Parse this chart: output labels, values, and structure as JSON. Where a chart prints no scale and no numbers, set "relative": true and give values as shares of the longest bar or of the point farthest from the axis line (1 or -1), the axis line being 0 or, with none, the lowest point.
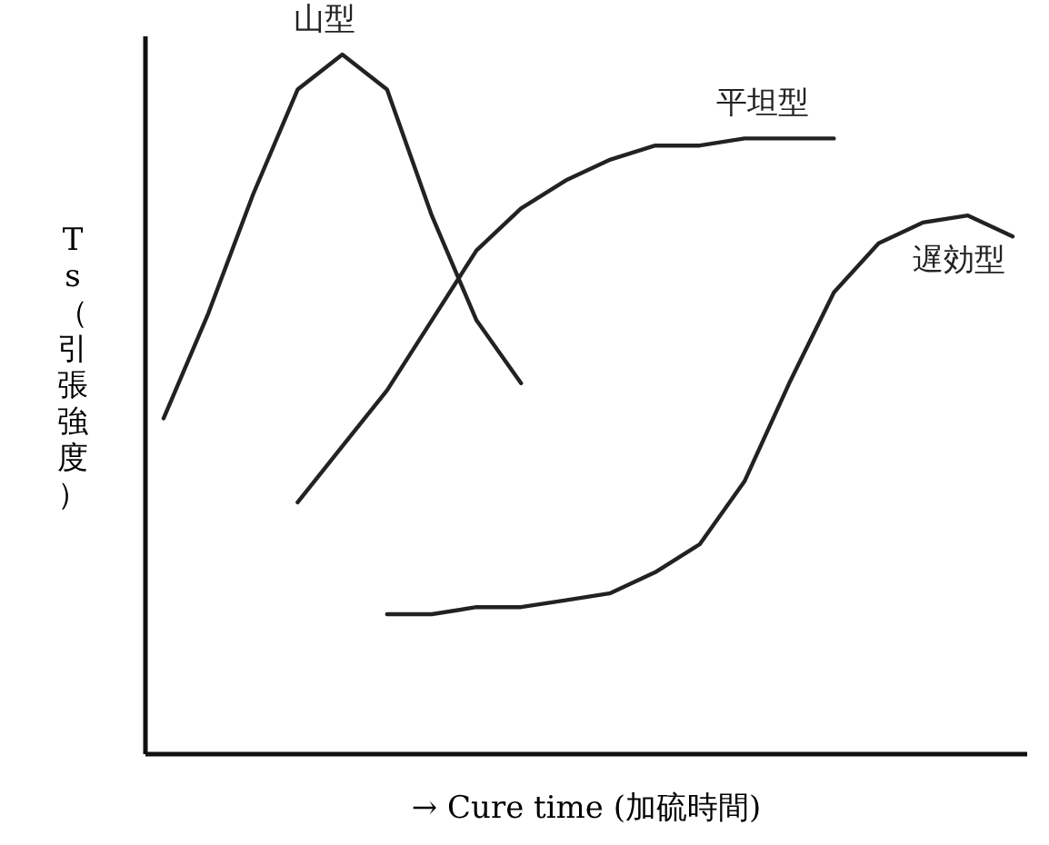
{
  "chart_data": {
    "type": "line",
    "relative": true,
    "tick_labels": false,
    "xlabel": "→ Cure time (加硫時間)",
    "ylabel": "Ts（引張強度）",
    "categories": [
      null,
      null,
      null,
      null,
      null,
      null,
      null,
      null,
      null,
      null,
      null,
      null,
      null,
      null,
      null,
      null,
      null,
      null,
      null,
      null
    ],
    "series": [
      {
        "name": "山型",
        "color": "#222222",
        "values": [
          0.48,
          0.63,
          0.8,
          0.95,
          1.0,
          0.95,
          0.77,
          0.62,
          0.53,
          null,
          null,
          null,
          null,
          null,
          null,
          null,
          null,
          null,
          null,
          null
        ]
      },
      {
        "name": "平坦型",
        "color": "#222222",
        "values": [
          null,
          null,
          null,
          0.36,
          0.44,
          0.52,
          0.62,
          0.72,
          0.78,
          0.82,
          0.85,
          0.87,
          0.87,
          0.88,
          0.88,
          0.88,
          null,
          null,
          null,
          null
        ]
      },
      {
        "name": "遅効型",
        "color": "#222222",
        "values": [
          null,
          null,
          null,
          null,
          null,
          0.2,
          0.2,
          0.21,
          0.21,
          0.22,
          0.23,
          0.26,
          0.3,
          0.39,
          0.53,
          0.66,
          0.73,
          0.76,
          0.77,
          0.74
        ]
      }
    ]
  }
}
